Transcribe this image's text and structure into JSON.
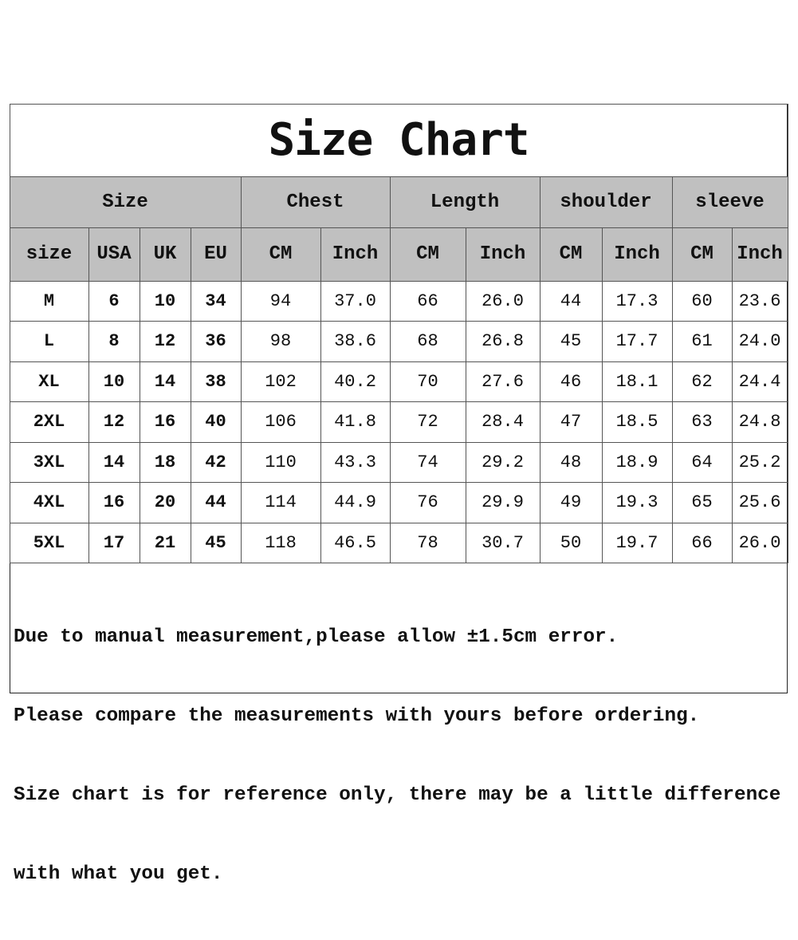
{
  "title": "Size Chart",
  "group_headers": [
    "Size",
    "Chest",
    "Length",
    "shoulder",
    "sleeve"
  ],
  "column_headers": [
    "size",
    "USA",
    "UK",
    "EU",
    "CM",
    "Inch",
    "CM",
    "Inch",
    "CM",
    "Inch",
    "CM",
    "Inch"
  ],
  "rows": [
    [
      "M",
      "6",
      "10",
      "34",
      "94",
      "37.0",
      "66",
      "26.0",
      "44",
      "17.3",
      "60",
      "23.6"
    ],
    [
      "L",
      "8",
      "12",
      "36",
      "98",
      "38.6",
      "68",
      "26.8",
      "45",
      "17.7",
      "61",
      "24.0"
    ],
    [
      "XL",
      "10",
      "14",
      "38",
      "102",
      "40.2",
      "70",
      "27.6",
      "46",
      "18.1",
      "62",
      "24.4"
    ],
    [
      "2XL",
      "12",
      "16",
      "40",
      "106",
      "41.8",
      "72",
      "28.4",
      "47",
      "18.5",
      "63",
      "24.8"
    ],
    [
      "3XL",
      "14",
      "18",
      "42",
      "110",
      "43.3",
      "74",
      "29.2",
      "48",
      "18.9",
      "64",
      "25.2"
    ],
    [
      "4XL",
      "16",
      "20",
      "44",
      "114",
      "44.9",
      "76",
      "29.9",
      "49",
      "19.3",
      "65",
      "25.6"
    ],
    [
      "5XL",
      "17",
      "21",
      "45",
      "118",
      "46.5",
      "78",
      "30.7",
      "50",
      "19.7",
      "66",
      "26.0"
    ]
  ],
  "notes": [
    "Due to manual measurement,please allow ±1.5cm error.",
    "Please compare the measurements with yours before ordering.",
    "Size chart is for reference only, there may be a little difference",
    "with what you get."
  ],
  "colors": {
    "header_bg": "#c0c0c0",
    "border": "#555555",
    "text": "#111111"
  }
}
